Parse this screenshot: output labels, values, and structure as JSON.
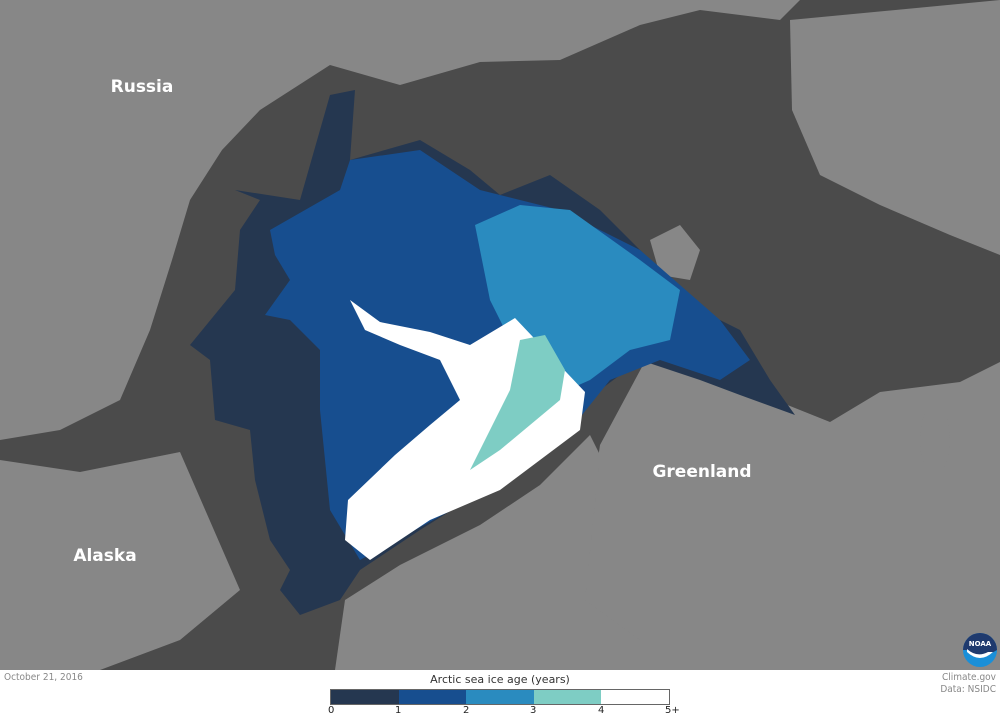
{
  "map": {
    "labels": {
      "russia": "Russia",
      "alaska": "Alaska",
      "greenland": "Greenland"
    },
    "colors": {
      "ocean": "#4b4b4b",
      "land": "#878787"
    },
    "logo_text": "NOAA"
  },
  "footer": {
    "date": "October 21, 2016",
    "credit": "Climate.gov",
    "data_source": "Data: NSIDC"
  },
  "legend": {
    "title": "Arctic sea ice age (years)",
    "ticks": [
      "0",
      "1",
      "2",
      "3",
      "4",
      "5+"
    ],
    "colors": [
      "#253750",
      "#174e8f",
      "#2a8bbf",
      "#7ecdc4",
      "#ffffff"
    ]
  }
}
